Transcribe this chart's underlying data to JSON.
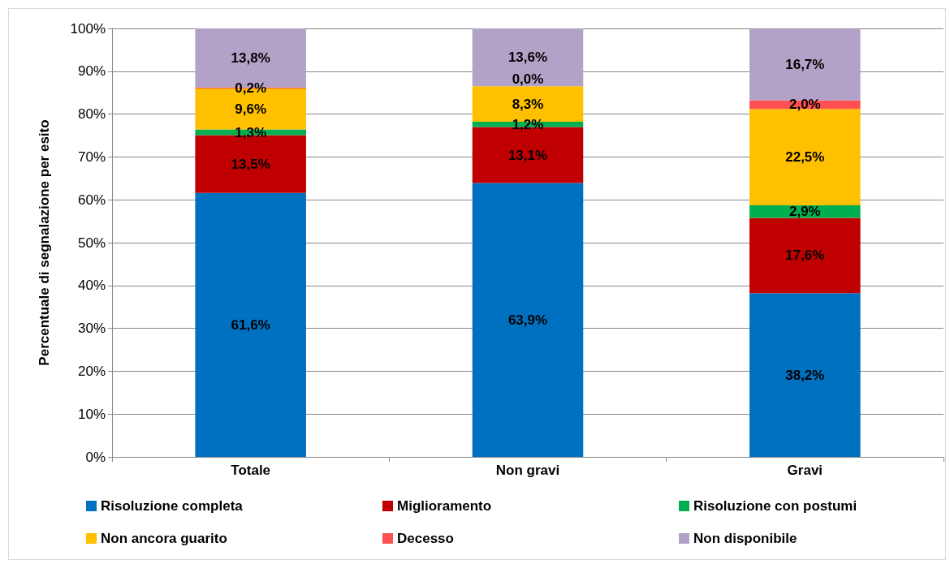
{
  "chart_data": {
    "type": "bar",
    "stacked": true,
    "ylabel": "Percentuale di segnalazione per esito",
    "categories": [
      "Totale",
      "Non gravi",
      "Gravi"
    ],
    "series": [
      {
        "name": "Risoluzione completa",
        "color": "#0070c0",
        "values": [
          61.6,
          63.9,
          38.2
        ],
        "value_labels": [
          "61,6%",
          "63,9%",
          "38,2%"
        ]
      },
      {
        "name": "Miglioramento",
        "color": "#c00000",
        "values": [
          13.5,
          13.1,
          17.6
        ],
        "value_labels": [
          "13,5%",
          "13,1%",
          "17,6%"
        ]
      },
      {
        "name": "Risoluzione con postumi",
        "color": "#00b050",
        "values": [
          1.3,
          1.2,
          2.9
        ],
        "value_labels": [
          "1,3%",
          "1,2%",
          "2,9%"
        ]
      },
      {
        "name": "Non ancora guarito",
        "color": "#ffc000",
        "values": [
          9.6,
          8.3,
          22.5
        ],
        "value_labels": [
          "9,6%",
          "8,3%",
          "22,5%"
        ]
      },
      {
        "name": "Decesso",
        "color": "#ff5050",
        "values": [
          0.2,
          0.0,
          2.0
        ],
        "value_labels": [
          "0,2%",
          "0,0%",
          "2,0%"
        ]
      },
      {
        "name": "Non disponibile",
        "color": "#b3a2c7",
        "values": [
          13.8,
          13.6,
          16.7
        ],
        "value_labels": [
          "13,8%",
          "13,6%",
          "16,7%"
        ]
      }
    ],
    "ylim": [
      0,
      100
    ],
    "yticks": [
      {
        "value": 0,
        "label": "0%"
      },
      {
        "value": 10,
        "label": "10%"
      },
      {
        "value": 20,
        "label": "20%"
      },
      {
        "value": 30,
        "label": "30%"
      },
      {
        "value": 40,
        "label": "40%"
      },
      {
        "value": 50,
        "label": "50%"
      },
      {
        "value": 60,
        "label": "60%"
      },
      {
        "value": 70,
        "label": "70%"
      },
      {
        "value": 80,
        "label": "80%"
      },
      {
        "value": 90,
        "label": "90%"
      },
      {
        "value": 100,
        "label": "100%"
      }
    ],
    "grid": "y",
    "legend": "bottom"
  }
}
